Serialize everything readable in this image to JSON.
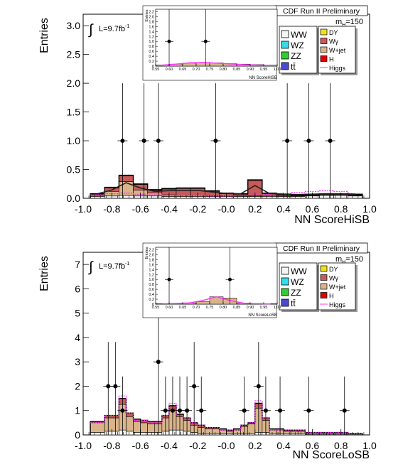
{
  "chart_data": [
    {
      "type": "bar",
      "stacked": true,
      "title": "CDF Run II Preliminary",
      "xlabel": "NN ScoreHiSB",
      "ylabel": "Entries",
      "xlim": [
        -1.0,
        1.0
      ],
      "ylim": [
        0,
        3.2
      ],
      "xticks": [
        "-1.0",
        "-0.8",
        "-0.6",
        "-0.4",
        "-0.2",
        "-0.0",
        "0.2",
        "0.4",
        "0.6",
        "0.8",
        "1.0"
      ],
      "yticks": [
        "0.0",
        "0.5",
        "1.0",
        "1.5",
        "2.0",
        "2.5",
        "3.0"
      ],
      "luminosity": "L=9.7fb",
      "lumi_exp": "-1",
      "mass_label": "m",
      "mass_sub": "H",
      "mass_value": "=150",
      "legend": [
        "WW",
        "WZ",
        "ZZ",
        "tt̄",
        "DY",
        "Wγ",
        "W+jet",
        "H",
        "Higgs"
      ],
      "bin_edges": [
        -0.95,
        -0.85,
        -0.75,
        -0.65,
        -0.55,
        -0.45,
        -0.35,
        -0.25,
        -0.15,
        -0.05,
        0.05,
        0.15,
        0.25,
        0.35,
        0.45,
        0.55,
        0.65,
        0.75,
        0.85,
        0.95
      ],
      "series": [
        {
          "name": "WW",
          "values": [
            0.03,
            0.04,
            0.05,
            0.04,
            0.04,
            0.03,
            0.03,
            0.03,
            0.03,
            0.03,
            0.03,
            0.03,
            0.03,
            0.03,
            0.03,
            0.04,
            0.05,
            0.05,
            0.04
          ]
        },
        {
          "name": "W+jet",
          "values": [
            0.02,
            0.08,
            0.24,
            0.1,
            0.05,
            0.03,
            0.02,
            0.02,
            0.01,
            0.01,
            0.01,
            0.01,
            0.02,
            0.01,
            0.01,
            0.01,
            0.01,
            0.01,
            0.01
          ]
        },
        {
          "name": "Wγ",
          "values": [
            0.02,
            0.06,
            0.1,
            0.1,
            0.05,
            0.1,
            0.12,
            0.12,
            0.08,
            0.04,
            0.03,
            0.27,
            0.03,
            0.02,
            0.01,
            0.01,
            0.01,
            0.01,
            0.01
          ]
        },
        {
          "name": "DY",
          "values": [
            0.01,
            0.01,
            0.01,
            0.01,
            0.01,
            0.01,
            0.01,
            0.01,
            0.01,
            0.01,
            0.01,
            0.01,
            0.01,
            0.01,
            0.01,
            0.01,
            0.01,
            0.01,
            0.01
          ]
        }
      ],
      "total": [
        0.08,
        0.19,
        0.4,
        0.25,
        0.15,
        0.17,
        0.18,
        0.18,
        0.13,
        0.09,
        0.08,
        0.32,
        0.09,
        0.07,
        0.06,
        0.07,
        0.08,
        0.08,
        0.07
      ],
      "higgs": [
        0.06,
        0.08,
        0.09,
        0.07,
        0.06,
        0.05,
        0.05,
        0.05,
        0.04,
        0.04,
        0.05,
        0.06,
        0.07,
        0.08,
        0.1,
        0.12,
        0.13,
        0.12,
        0.08
      ],
      "data_points": [
        {
          "x": -0.725,
          "y": 1
        },
        {
          "x": -0.575,
          "y": 1
        },
        {
          "x": -0.475,
          "y": 1
        },
        {
          "x": -0.075,
          "y": 1
        },
        {
          "x": 0.425,
          "y": 1
        },
        {
          "x": 0.575,
          "y": 1
        },
        {
          "x": 0.725,
          "y": 1
        }
      ],
      "inset": {
        "xlabel": "NN ScoreHiSB",
        "ylabel": "Entries",
        "xlim": [
          0.55,
          1.0
        ],
        "ylim": [
          0,
          2.3
        ],
        "xticks": [
          "0.55",
          "0.60",
          "0.65",
          "0.70",
          "0.75",
          "0.80",
          "0.85",
          "0.90",
          "0.95",
          "1.00"
        ],
        "yticks": [
          "0",
          "0.2",
          "0.4",
          "0.6",
          "0.8",
          "1.0",
          "1.2",
          "1.4",
          "1.6",
          "1.8",
          "2.0",
          "2.2"
        ],
        "data_points": [
          {
            "x": 0.6,
            "y": 1
          },
          {
            "x": 0.735,
            "y": 1
          }
        ],
        "bin_edges": [
          0.55,
          0.6,
          0.65,
          0.7,
          0.75,
          0.8,
          0.85,
          0.9,
          0.95,
          1.0
        ],
        "total": [
          0.05,
          0.08,
          0.12,
          0.15,
          0.13,
          0.1,
          0.08,
          0.06,
          0.04
        ],
        "higgs": [
          0.04,
          0.08,
          0.13,
          0.15,
          0.12,
          0.09,
          0.06,
          0.04,
          0.02
        ]
      }
    },
    {
      "type": "bar",
      "stacked": true,
      "title": "CDF Run II Preliminary",
      "xlabel": "NN ScoreLoSB",
      "ylabel": "Entries",
      "xlim": [
        -1.0,
        1.0
      ],
      "ylim": [
        0,
        7.5
      ],
      "xticks": [
        "-1.0",
        "-0.8",
        "-0.6",
        "-0.4",
        "-0.2",
        "-0.0",
        "0.2",
        "0.4",
        "0.6",
        "0.8",
        "1.0"
      ],
      "yticks": [
        "0",
        "1",
        "2",
        "3",
        "4",
        "5",
        "6",
        "7"
      ],
      "luminosity": "L=9.7fb",
      "lumi_exp": "-1",
      "mass_label": "m",
      "mass_sub": "H",
      "mass_value": "=150",
      "legend": [
        "WW",
        "WZ",
        "ZZ",
        "tt̄",
        "DY",
        "Wγ",
        "W+jet",
        "H",
        "Higgs"
      ],
      "bin_edges": [
        -0.95,
        -0.85,
        -0.75,
        -0.7,
        -0.65,
        -0.6,
        -0.55,
        -0.5,
        -0.45,
        -0.4,
        -0.35,
        -0.3,
        -0.25,
        -0.2,
        -0.15,
        -0.1,
        -0.05,
        0.0,
        0.05,
        0.1,
        0.15,
        0.2,
        0.25,
        0.3,
        0.35,
        0.4,
        0.45,
        0.5,
        0.55,
        0.6,
        0.65,
        0.7,
        0.75,
        0.8,
        0.85,
        0.9,
        0.95
      ],
      "series": [
        {
          "name": "WW",
          "values": [
            0.1,
            0.15,
            0.2,
            0.15,
            0.1,
            0.1,
            0.1,
            0.1,
            0.15,
            0.2,
            0.2,
            0.15,
            0.1,
            0.05,
            0.05,
            0.05,
            0.05,
            0.05,
            0.05,
            0.05,
            0.05,
            0.1,
            0.1,
            0.05,
            0.05,
            0.05,
            0.05,
            0.05,
            0.03,
            0.03,
            0.03,
            0.03,
            0.03,
            0.03,
            0.03,
            0.03
          ]
        },
        {
          "name": "W+jet",
          "values": [
            0.4,
            0.55,
            1.05,
            0.6,
            0.45,
            0.4,
            0.35,
            0.35,
            0.55,
            0.85,
            0.55,
            0.45,
            0.3,
            0.25,
            0.2,
            0.2,
            0.15,
            0.1,
            0.15,
            0.3,
            0.4,
            1.0,
            0.5,
            0.15,
            0.15,
            0.1,
            0.1,
            0.1,
            0.05,
            0.05,
            0.05,
            0.05,
            0.05,
            0.05,
            0.02,
            0.02
          ]
        },
        {
          "name": "Wγ",
          "values": [
            0.05,
            0.1,
            0.25,
            0.15,
            0.1,
            0.1,
            0.1,
            0.1,
            0.1,
            0.15,
            0.1,
            0.1,
            0.1,
            0.1,
            0.05,
            0.05,
            0.05,
            0.05,
            0.05,
            0.05,
            0.05,
            0.2,
            0.1,
            0.05,
            0.05,
            0.05,
            0.05,
            0.05,
            0.02,
            0.02,
            0.02,
            0.02,
            0.02,
            0.02,
            0.01,
            0.01
          ]
        }
      ],
      "total": [
        0.55,
        0.8,
        1.5,
        0.9,
        0.65,
        0.6,
        0.55,
        0.55,
        0.8,
        1.2,
        0.85,
        0.7,
        0.5,
        0.4,
        0.3,
        0.3,
        0.25,
        0.2,
        0.25,
        0.4,
        0.5,
        1.3,
        0.7,
        0.25,
        0.25,
        0.2,
        0.2,
        0.2,
        0.1,
        0.1,
        0.1,
        0.1,
        0.1,
        0.1,
        0.06,
        0.06
      ],
      "higgs": [
        0.5,
        0.8,
        1.6,
        0.9,
        0.6,
        0.6,
        0.5,
        0.5,
        0.8,
        1.3,
        0.8,
        0.7,
        0.5,
        0.4,
        0.3,
        0.3,
        0.2,
        0.2,
        0.2,
        0.4,
        0.5,
        1.4,
        0.7,
        0.2,
        0.2,
        0.2,
        0.2,
        0.2,
        0.1,
        0.1,
        0.1,
        0.1,
        0.1,
        0.1,
        0.05,
        0.05
      ],
      "data_points": [
        {
          "x": -0.825,
          "y": 2
        },
        {
          "x": -0.775,
          "y": 2
        },
        {
          "x": -0.725,
          "y": 1
        },
        {
          "x": -0.475,
          "y": 3
        },
        {
          "x": -0.425,
          "y": 1
        },
        {
          "x": -0.375,
          "y": 1
        },
        {
          "x": -0.325,
          "y": 1
        },
        {
          "x": -0.275,
          "y": 1
        },
        {
          "x": -0.225,
          "y": 2
        },
        {
          "x": -0.175,
          "y": 1
        },
        {
          "x": 0.125,
          "y": 1
        },
        {
          "x": 0.225,
          "y": 2
        },
        {
          "x": 0.275,
          "y": 1
        },
        {
          "x": 0.375,
          "y": 1
        },
        {
          "x": 0.575,
          "y": 1
        },
        {
          "x": 0.825,
          "y": 1
        }
      ],
      "inset": {
        "xlabel": "NN ScoreLoSB",
        "ylabel": "Entries",
        "xlim": [
          0.55,
          1.0
        ],
        "ylim": [
          0,
          2.3
        ],
        "xticks": [
          "0.55",
          "0.60",
          "0.65",
          "0.70",
          "0.75",
          "0.80",
          "0.85",
          "0.90",
          "0.95",
          "1.00"
        ],
        "yticks": [
          "0",
          "0.2",
          "0.4",
          "0.6",
          "0.8",
          "1.0",
          "1.2",
          "1.4",
          "1.6",
          "1.8",
          "2.0",
          "2.2"
        ],
        "data_points": [
          {
            "x": 0.6,
            "y": 1
          },
          {
            "x": 0.825,
            "y": 1
          }
        ],
        "bin_edges": [
          0.55,
          0.6,
          0.65,
          0.7,
          0.75,
          0.8,
          0.85,
          0.9,
          0.95,
          1.0
        ],
        "total": [
          0.02,
          0.03,
          0.05,
          0.1,
          0.3,
          0.25,
          0.05,
          0.03,
          0.02
        ],
        "higgs": [
          0.02,
          0.03,
          0.05,
          0.15,
          0.3,
          0.15,
          0.04,
          0.02,
          0.01
        ]
      }
    }
  ],
  "colors": {
    "WW": "#f5f5f5",
    "WZ": "#33ddee",
    "ZZ": "#33cc33",
    "tt": "#4a4ad0",
    "DY": "#f0e020",
    "Wgamma": "#c85a5a",
    "Wjet": "#d9b48a",
    "H": "#e00000",
    "Higgs": "#ff33ff"
  }
}
